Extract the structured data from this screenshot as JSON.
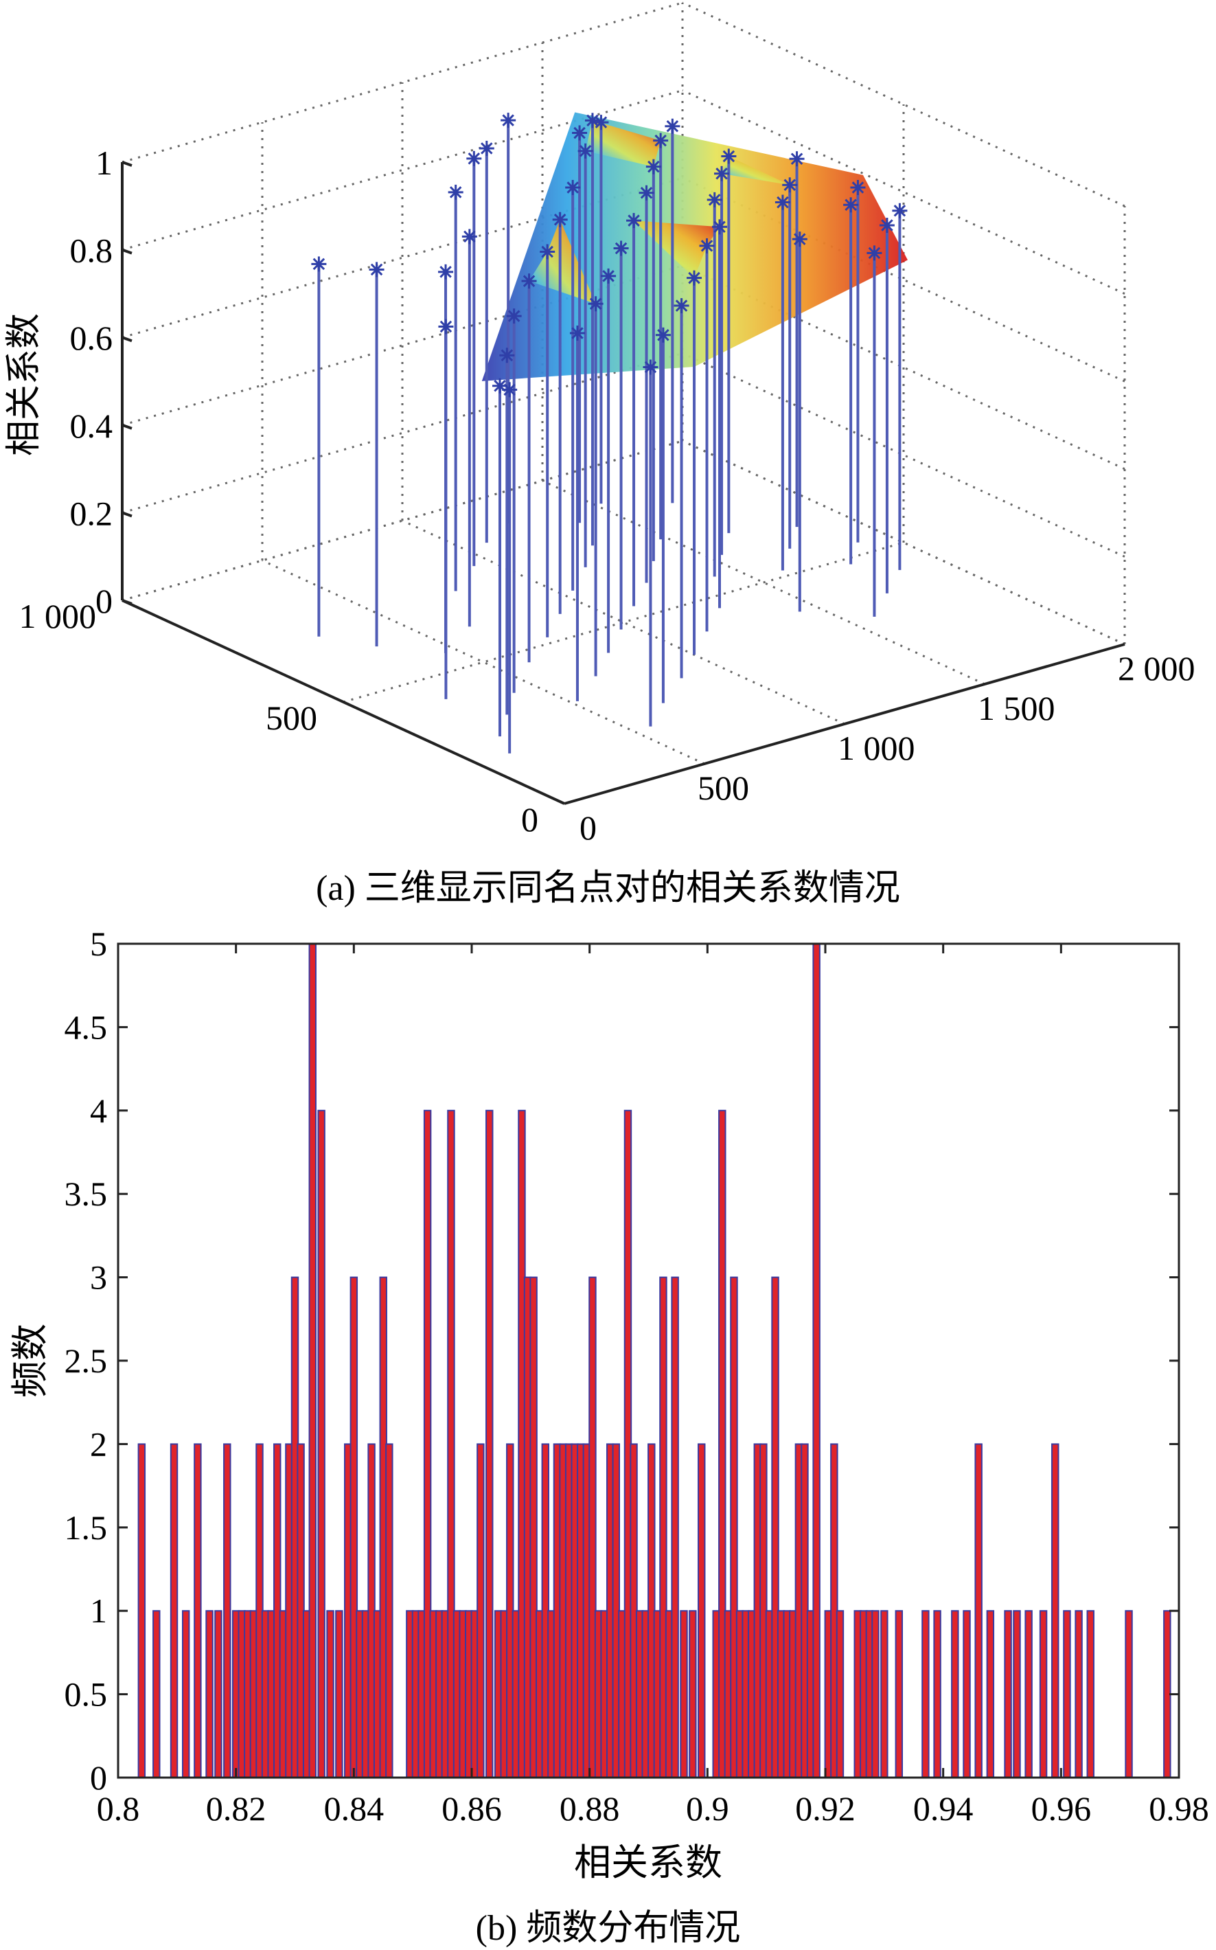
{
  "figure_a": {
    "caption": "(a) 三维显示同名点对的相关系数情况",
    "zlabel": "相关系数",
    "z_ticks": [
      "0",
      "0.2",
      "0.4",
      "0.6",
      "0.8",
      "1"
    ],
    "y_ticks": [
      "0",
      "500",
      "1 000"
    ],
    "x_ticks": [
      "0",
      "500",
      "1 000",
      "1 500",
      "2 000"
    ]
  },
  "figure_b": {
    "caption": "(b) 频数分布情况",
    "xlabel": "相关系数",
    "ylabel": "频数",
    "x_ticks": [
      "0.8",
      "0.82",
      "0.84",
      "0.86",
      "0.88",
      "0.9",
      "0.92",
      "0.94",
      "0.96",
      "0.98"
    ],
    "y_ticks": [
      "0",
      "0.5",
      "1",
      "1.5",
      "2",
      "2.5",
      "3",
      "3.5",
      "4",
      "4.5",
      "5"
    ]
  },
  "chart_data": [
    {
      "type": "scatter",
      "subtype": "3d-stem-with-surface",
      "title": "",
      "zlabel": "相关系数",
      "xlim": [
        0,
        2000
      ],
      "ylim": [
        0,
        1000
      ],
      "zlim": [
        0,
        1
      ],
      "grid": true,
      "marker": "asterisk",
      "colors": {
        "stem": "#4f5bb5",
        "marker": "#2f3fa8"
      },
      "points": [
        {
          "x": 120,
          "y": 200,
          "z": 0.83
        },
        {
          "x": 180,
          "y": 260,
          "z": 0.8
        },
        {
          "x": 300,
          "y": 320,
          "z": 0.82
        },
        {
          "x": 240,
          "y": 420,
          "z": 0.85
        },
        {
          "x": 420,
          "y": 380,
          "z": 0.86
        },
        {
          "x": 520,
          "y": 300,
          "z": 0.84
        },
        {
          "x": 600,
          "y": 460,
          "z": 0.87
        },
        {
          "x": 680,
          "y": 360,
          "z": 0.85
        },
        {
          "x": 760,
          "y": 520,
          "z": 0.88
        },
        {
          "x": 820,
          "y": 420,
          "z": 0.86
        },
        {
          "x": 900,
          "y": 580,
          "z": 0.9
        },
        {
          "x": 960,
          "y": 480,
          "z": 0.87
        },
        {
          "x": 1040,
          "y": 640,
          "z": 0.92
        },
        {
          "x": 1100,
          "y": 540,
          "z": 0.88
        },
        {
          "x": 1180,
          "y": 700,
          "z": 0.95
        },
        {
          "x": 1240,
          "y": 600,
          "z": 0.89
        },
        {
          "x": 1300,
          "y": 760,
          "z": 0.97
        },
        {
          "x": 1360,
          "y": 660,
          "z": 0.9
        },
        {
          "x": 1420,
          "y": 560,
          "z": 0.86
        },
        {
          "x": 1480,
          "y": 720,
          "z": 0.91
        },
        {
          "x": 1540,
          "y": 620,
          "z": 0.87
        },
        {
          "x": 1600,
          "y": 520,
          "z": 0.84
        },
        {
          "x": 1660,
          "y": 680,
          "z": 0.86
        },
        {
          "x": 1720,
          "y": 580,
          "z": 0.83
        },
        {
          "x": 1780,
          "y": 480,
          "z": 0.82
        },
        {
          "x": 1840,
          "y": 640,
          "z": 0.84
        },
        {
          "x": 1900,
          "y": 540,
          "z": 0.81
        },
        {
          "x": 560,
          "y": 160,
          "z": 0.82
        },
        {
          "x": 700,
          "y": 220,
          "z": 0.84
        },
        {
          "x": 860,
          "y": 280,
          "z": 0.85
        },
        {
          "x": 1000,
          "y": 340,
          "z": 0.86
        },
        {
          "x": 1140,
          "y": 400,
          "z": 0.88
        },
        {
          "x": 1280,
          "y": 460,
          "z": 0.87
        },
        {
          "x": 1440,
          "y": 380,
          "z": 0.85
        },
        {
          "x": 1580,
          "y": 300,
          "z": 0.83
        },
        {
          "x": 1720,
          "y": 360,
          "z": 0.84
        },
        {
          "x": 1860,
          "y": 420,
          "z": 0.82
        },
        {
          "x": 640,
          "y": 620,
          "z": 0.89
        },
        {
          "x": 780,
          "y": 740,
          "z": 0.91
        },
        {
          "x": 940,
          "y": 800,
          "z": 0.93
        },
        {
          "x": 1080,
          "y": 860,
          "z": 0.9
        },
        {
          "x": 1220,
          "y": 900,
          "z": 0.92
        },
        {
          "x": 1380,
          "y": 840,
          "z": 0.89
        },
        {
          "x": 1520,
          "y": 880,
          "z": 0.87
        },
        {
          "x": 1680,
          "y": 820,
          "z": 0.86
        },
        {
          "x": 460,
          "y": 560,
          "z": 0.87
        },
        {
          "x": 340,
          "y": 640,
          "z": 0.86
        },
        {
          "x": 260,
          "y": 720,
          "z": 0.85
        }
      ]
    },
    {
      "type": "bar",
      "subtype": "histogram",
      "title": "",
      "xlabel": "相关系数",
      "ylabel": "频数",
      "xlim": [
        0.8,
        0.98
      ],
      "ylim": [
        0,
        5
      ],
      "grid": false,
      "colors": {
        "bar": "#e0242a",
        "edge": "#3a3aa0"
      },
      "x": [
        0.804,
        0.8065,
        0.8095,
        0.8115,
        0.8135,
        0.8155,
        0.817,
        0.8185,
        0.82,
        0.821,
        0.822,
        0.823,
        0.824,
        0.825,
        0.826,
        0.827,
        0.828,
        0.829,
        0.83,
        0.831,
        0.832,
        0.833,
        0.8345,
        0.836,
        0.8375,
        0.839,
        0.84,
        0.841,
        0.842,
        0.843,
        0.844,
        0.845,
        0.846,
        0.8495,
        0.8505,
        0.8515,
        0.8525,
        0.8535,
        0.8545,
        0.8555,
        0.8565,
        0.8575,
        0.8585,
        0.8595,
        0.8605,
        0.8615,
        0.863,
        0.8645,
        0.8655,
        0.8665,
        0.8675,
        0.8685,
        0.8695,
        0.8705,
        0.8715,
        0.8725,
        0.8735,
        0.8745,
        0.8755,
        0.8765,
        0.8775,
        0.8785,
        0.8795,
        0.8805,
        0.8815,
        0.8825,
        0.8835,
        0.8845,
        0.8855,
        0.8865,
        0.8875,
        0.8885,
        0.8895,
        0.8905,
        0.8915,
        0.8925,
        0.8935,
        0.8945,
        0.896,
        0.8975,
        0.899,
        0.9015,
        0.9025,
        0.9035,
        0.9045,
        0.9055,
        0.9065,
        0.9075,
        0.9085,
        0.9095,
        0.9105,
        0.9115,
        0.9125,
        0.9135,
        0.9145,
        0.9155,
        0.9165,
        0.9175,
        0.9185,
        0.9205,
        0.9215,
        0.9225,
        0.9255,
        0.9265,
        0.9275,
        0.9285,
        0.93,
        0.9325,
        0.937,
        0.939,
        0.942,
        0.944,
        0.946,
        0.948,
        0.951,
        0.9525,
        0.9545,
        0.957,
        0.959,
        0.961,
        0.963,
        0.965,
        0.9715,
        0.978
      ],
      "values": [
        2,
        1,
        2,
        1,
        2,
        1,
        1,
        2,
        1,
        1,
        1,
        1,
        2,
        1,
        1,
        2,
        1,
        2,
        3,
        2,
        1,
        5,
        4,
        1,
        1,
        2,
        3,
        1,
        1,
        2,
        1,
        3,
        2,
        1,
        1,
        1,
        4,
        1,
        1,
        1,
        4,
        1,
        1,
        1,
        1,
        2,
        4,
        1,
        1,
        2,
        1,
        4,
        3,
        3,
        1,
        2,
        1,
        2,
        2,
        2,
        2,
        2,
        2,
        3,
        1,
        1,
        2,
        2,
        1,
        4,
        2,
        1,
        1,
        2,
        1,
        3,
        1,
        3,
        1,
        1,
        2,
        1,
        4,
        1,
        3,
        1,
        1,
        1,
        2,
        2,
        1,
        3,
        1,
        1,
        1,
        2,
        2,
        1,
        5,
        1,
        2,
        1,
        1,
        1,
        1,
        1,
        1,
        1,
        1,
        1,
        1,
        1,
        2,
        1,
        1,
        1,
        1,
        1,
        2,
        1,
        1,
        1,
        1,
        1
      ]
    }
  ]
}
